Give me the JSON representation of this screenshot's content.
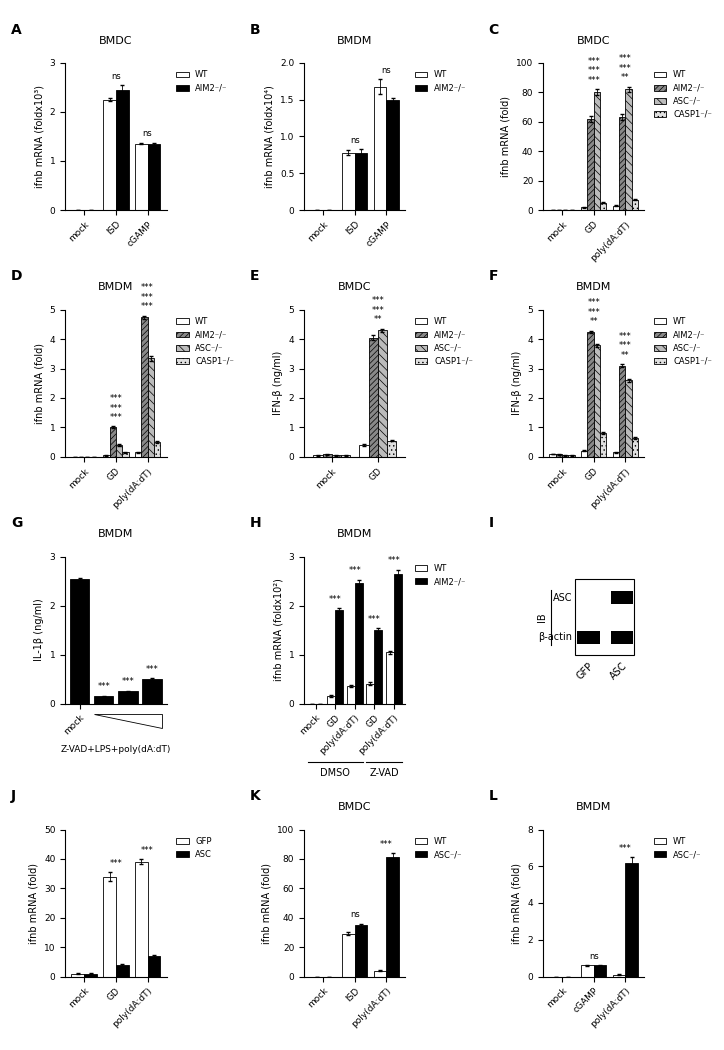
{
  "chart_data": [
    {
      "type": "bar",
      "panel": "A",
      "title": "BMDC",
      "y_label": "ifnb mRNA (foldx10³)",
      "categories": [
        "mock",
        "ISD",
        "cGAMP"
      ],
      "series": [
        {
          "name": "WT",
          "color": "#ffffff",
          "values": [
            0,
            2.25,
            1.35
          ],
          "errors": [
            0,
            0.03,
            0.01
          ]
        },
        {
          "name": "AIM2⁻/⁻",
          "color": "#000000",
          "values": [
            0,
            2.45,
            1.35
          ],
          "errors": [
            0,
            0.1,
            0.02
          ]
        }
      ],
      "ylim": [
        0,
        3
      ],
      "yticks": [
        0,
        1,
        2,
        3
      ],
      "legend": "upper left",
      "annotations": [
        {
          "index": 1,
          "labels": [
            "ns"
          ]
        },
        {
          "index": 2,
          "labels": [
            "ns"
          ]
        }
      ]
    },
    {
      "type": "bar",
      "panel": "B",
      "title": "BMDM",
      "y_label": "ifnb mRNA (foldx10⁴)",
      "categories": [
        "mock",
        "ISD",
        "cGAMP"
      ],
      "series": [
        {
          "name": "WT",
          "color": "#ffffff",
          "values": [
            0,
            0.78,
            1.68
          ],
          "errors": [
            0,
            0.03,
            0.1
          ]
        },
        {
          "name": "AIM2⁻/⁻",
          "color": "#000000",
          "values": [
            0,
            0.78,
            1.5
          ],
          "errors": [
            0,
            0.05,
            0.03
          ]
        }
      ],
      "ylim": [
        0,
        2
      ],
      "yticks": [
        0,
        0.5,
        {
          "value": 1,
          "label": "1.0"
        },
        1.5,
        {
          "value": 2,
          "label": "2.0"
        }
      ],
      "legend": "upper left",
      "annotations": [
        {
          "index": 1,
          "labels": [
            "ns"
          ]
        },
        {
          "index": 2,
          "labels": [
            "ns"
          ]
        }
      ]
    },
    {
      "type": "bar",
      "panel": "C",
      "title": "BMDC",
      "y_label": "ifnb mRNA (fold)",
      "categories": [
        "mock",
        "GD",
        "poly(dA:dT)"
      ],
      "series": [
        {
          "name": "WT",
          "color": "#ffffff",
          "values": [
            0,
            2,
            3
          ],
          "errors": [
            0,
            0.3,
            0.3
          ]
        },
        {
          "name": "AIM2⁻/⁻",
          "color": "#888888",
          "values": [
            0,
            62,
            63
          ],
          "errors": [
            0,
            2,
            2
          ]
        },
        {
          "name": "ASC⁻/⁻",
          "color": "#bbbbbb",
          "values": [
            0,
            80,
            82
          ],
          "errors": [
            0,
            2,
            2
          ]
        },
        {
          "name": "CASP1⁻/⁻",
          "color": "#e0e0e0",
          "values": [
            0,
            5,
            7
          ],
          "errors": [
            0,
            0.5,
            0.5
          ]
        }
      ],
      "ylim": [
        0,
        100
      ],
      "yticks": [
        0,
        20,
        40,
        60,
        80,
        100
      ],
      "legend": "upper left",
      "annotations": [
        {
          "index": 1,
          "labels": [
            "***",
            "***",
            "***"
          ]
        },
        {
          "index": 2,
          "labels": [
            "**",
            "***",
            "***"
          ]
        }
      ]
    },
    {
      "type": "bar",
      "panel": "D",
      "title": "BMDM",
      "y_label": "ifnb mRNA (fold)",
      "categories": [
        "mock",
        "GD",
        "poly(dA:dT)"
      ],
      "series": [
        {
          "name": "WT",
          "color": "#ffffff",
          "values": [
            0,
            0.05,
            0.15
          ],
          "errors": [
            0,
            0.01,
            0.02
          ]
        },
        {
          "name": "AIM2⁻/⁻",
          "color": "#888888",
          "values": [
            0,
            1.0,
            4.75
          ],
          "errors": [
            0,
            0.03,
            0.05
          ]
        },
        {
          "name": "ASC⁻/⁻",
          "color": "#bbbbbb",
          "values": [
            0,
            0.4,
            3.35
          ],
          "errors": [
            0,
            0.03,
            0.08
          ]
        },
        {
          "name": "CASP1⁻/⁻",
          "color": "#e0e0e0",
          "values": [
            0,
            0.15,
            0.5
          ],
          "errors": [
            0,
            0.02,
            0.03
          ]
        }
      ],
      "ylim": [
        0,
        5
      ],
      "yticks": [
        0,
        1,
        2,
        3,
        4,
        5
      ],
      "legend": "upper left",
      "annotations": [
        {
          "index": 1,
          "labels": [
            "***",
            "***",
            "***"
          ]
        },
        {
          "index": 2,
          "labels": [
            "***",
            "***",
            "***"
          ]
        }
      ]
    },
    {
      "type": "bar",
      "panel": "E",
      "title": "BMDC",
      "y_label": "IFN-β (ng/ml)",
      "categories": [
        "mock",
        "GD"
      ],
      "series": [
        {
          "name": "WT",
          "color": "#ffffff",
          "values": [
            0.05,
            0.4
          ],
          "errors": [
            0.01,
            0.03
          ]
        },
        {
          "name": "AIM2⁻/⁻",
          "color": "#888888",
          "values": [
            0.08,
            4.05
          ],
          "errors": [
            0.01,
            0.08
          ]
        },
        {
          "name": "ASC⁻/⁻",
          "color": "#bbbbbb",
          "values": [
            0.05,
            4.3
          ],
          "errors": [
            0.01,
            0.06
          ]
        },
        {
          "name": "CASP1⁻/⁻",
          "color": "#e0e0e0",
          "values": [
            0.05,
            0.55
          ],
          "errors": [
            0.01,
            0.03
          ]
        }
      ],
      "ylim": [
        0,
        5
      ],
      "yticks": [
        0,
        1,
        2,
        3,
        4,
        5
      ],
      "legend": "upper left",
      "annotations": [
        {
          "index": 1,
          "labels": [
            "**",
            "***",
            "***"
          ]
        }
      ]
    },
    {
      "type": "bar",
      "panel": "F",
      "title": "BMDM",
      "y_label": "IFN-β (ng/ml)",
      "categories": [
        "mock",
        "GD",
        "poly(dA:dT)"
      ],
      "series": [
        {
          "name": "WT",
          "color": "#ffffff",
          "values": [
            0.1,
            0.2,
            0.15
          ],
          "errors": [
            0.01,
            0.02,
            0.02
          ]
        },
        {
          "name": "AIM2⁻/⁻",
          "color": "#888888",
          "values": [
            0.08,
            4.25,
            3.1
          ],
          "errors": [
            0.01,
            0.04,
            0.05
          ]
        },
        {
          "name": "ASC⁻/⁻",
          "color": "#bbbbbb",
          "values": [
            0.05,
            3.8,
            2.6
          ],
          "errors": [
            0.01,
            0.05,
            0.05
          ]
        },
        {
          "name": "CASP1⁻/⁻",
          "color": "#e0e0e0",
          "values": [
            0.05,
            0.8,
            0.65
          ],
          "errors": [
            0.01,
            0.03,
            0.03
          ]
        }
      ],
      "ylim": [
        0,
        5
      ],
      "yticks": [
        0,
        1,
        2,
        3,
        4,
        5
      ],
      "legend": "upper left",
      "annotations": [
        {
          "index": 1,
          "labels": [
            "**",
            "***",
            "***"
          ]
        },
        {
          "index": 2,
          "labels": [
            "**",
            "***",
            "***"
          ]
        }
      ]
    },
    {
      "type": "bar",
      "panel": "G",
      "title": "BMDM",
      "y_label": "IL-1β (ng/ml)",
      "x_label": "Z-VAD+LPS+poly(dA:dT)",
      "categories": [
        "mock",
        null,
        null,
        null
      ],
      "values": [
        2.55,
        0.15,
        0.25,
        0.5
      ],
      "errors": [
        0.02,
        0.01,
        0.01,
        0.02
      ],
      "color": "#000000",
      "ylim": [
        0,
        3
      ],
      "yticks": [
        0,
        1,
        2,
        3
      ],
      "annotations": [
        {
          "index": 1,
          "labels": [
            "***"
          ]
        },
        {
          "index": 2,
          "labels": [
            "***"
          ]
        },
        {
          "index": 3,
          "labels": [
            "***"
          ]
        }
      ]
    },
    {
      "type": "bar",
      "panel": "H",
      "title": "BMDM",
      "y_label": "ifnb mRNA (foldx10²)",
      "categories": [
        "mock",
        "GD",
        "poly(dA:dT)",
        "GD",
        "poly(dA:dT)"
      ],
      "groups": [
        {
          "label": "DMSO",
          "indices": [
            0,
            1,
            2
          ]
        },
        {
          "label": "Z-VAD",
          "indices": [
            3,
            4
          ]
        }
      ],
      "series": [
        {
          "name": "WT",
          "color": "#ffffff",
          "values": [
            0,
            0.15,
            0.35,
            0.4,
            1.05
          ],
          "errors": [
            0,
            0.02,
            0.02,
            0.03,
            0.03
          ]
        },
        {
          "name": "AIM2⁻/⁻",
          "color": "#000000",
          "values": [
            0,
            1.9,
            2.45,
            1.5,
            2.65
          ],
          "errors": [
            0,
            0.05,
            0.08,
            0.04,
            0.08
          ]
        }
      ],
      "ylim": [
        0,
        3
      ],
      "yticks": [
        0,
        1,
        2,
        3
      ],
      "legend": "upper left",
      "annotations": [
        {
          "index": 1,
          "labels": [
            "***"
          ]
        },
        {
          "index": 2,
          "labels": [
            "***"
          ]
        },
        {
          "index": 3,
          "labels": [
            "***"
          ]
        },
        {
          "index": 4,
          "labels": [
            "***"
          ]
        }
      ]
    },
    {
      "type": "blot",
      "panel": "I",
      "label": "IB",
      "rows": [
        "ASC",
        "β-actin"
      ],
      "columns": [
        "GFP",
        "ASC"
      ],
      "bands": [
        [
          0,
          1
        ],
        [
          1,
          1
        ]
      ]
    },
    {
      "type": "bar",
      "panel": "J",
      "y_label": "ifnb mRNA (fold)",
      "categories": [
        "mock",
        "GD",
        "poly(dA:dT)"
      ],
      "series": [
        {
          "name": "GFP",
          "color": "#ffffff",
          "values": [
            1,
            34,
            39
          ],
          "errors": [
            0.1,
            1.5,
            0.8
          ]
        },
        {
          "name": "ASC",
          "color": "#000000",
          "values": [
            1,
            4,
            7
          ],
          "errors": [
            0.1,
            0.3,
            0.4
          ]
        }
      ],
      "ylim": [
        0,
        50
      ],
      "yticks": [
        0,
        10,
        20,
        30,
        40,
        50
      ],
      "legend": "upper left",
      "annotations": [
        {
          "index": 1,
          "labels": [
            "***"
          ]
        },
        {
          "index": 2,
          "labels": [
            "***"
          ]
        }
      ]
    },
    {
      "type": "bar",
      "panel": "K",
      "title": "BMDC",
      "y_label": "ifnb mRNA (fold)",
      "categories": [
        "mock",
        "ISD",
        "poly(dA:dT)"
      ],
      "series": [
        {
          "name": "WT",
          "color": "#ffffff",
          "values": [
            0,
            29,
            4
          ],
          "errors": [
            0,
            1,
            0.5
          ]
        },
        {
          "name": "ASC⁻/⁻",
          "color": "#000000",
          "values": [
            0,
            35,
            81
          ],
          "errors": [
            0,
            1,
            3
          ]
        }
      ],
      "ylim": [
        0,
        100
      ],
      "yticks": [
        0,
        20,
        40,
        60,
        80,
        100
      ],
      "legend": "upper left",
      "annotations": [
        {
          "index": 1,
          "labels": [
            "ns"
          ]
        },
        {
          "index": 2,
          "labels": [
            "***"
          ]
        }
      ]
    },
    {
      "type": "bar",
      "panel": "L",
      "title": "BMDM",
      "y_label": "ifnb mRNA (fold)",
      "categories": [
        "mock",
        "cGAMP",
        "poly(dA:dT)"
      ],
      "series": [
        {
          "name": "WT",
          "color": "#ffffff",
          "values": [
            0,
            0.6,
            0.1
          ],
          "errors": [
            0,
            0.03,
            0.01
          ]
        },
        {
          "name": "ASC⁻/⁻",
          "color": "#000000",
          "values": [
            0,
            0.6,
            6.2
          ],
          "errors": [
            0,
            0.03,
            0.3
          ]
        }
      ],
      "ylim": [
        0,
        8
      ],
      "yticks": [
        0,
        2,
        4,
        6,
        8
      ],
      "legend": "upper left",
      "annotations": [
        {
          "index": 1,
          "labels": [
            "ns"
          ]
        },
        {
          "index": 2,
          "labels": [
            "***"
          ]
        }
      ]
    }
  ]
}
